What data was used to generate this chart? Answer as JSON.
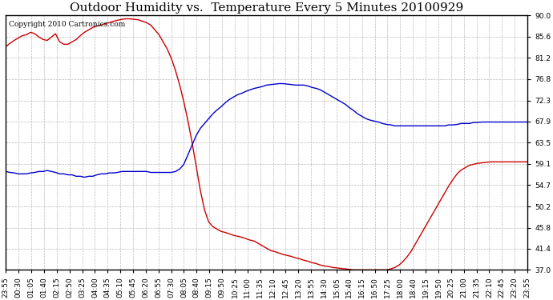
{
  "title": "Outdoor Humidity vs.  Temperature Every 5 Minutes 20100929",
  "copyright": "Copyright 2010 Cartronics.com",
  "y_ticks": [
    37.0,
    41.4,
    45.8,
    50.2,
    54.7,
    59.1,
    63.5,
    67.9,
    72.3,
    76.8,
    81.2,
    85.6,
    90.0
  ],
  "ylim": [
    37.0,
    90.0
  ],
  "x_labels": [
    "23:55",
    "00:30",
    "01:05",
    "01:40",
    "02:15",
    "02:50",
    "03:25",
    "04:00",
    "04:35",
    "05:10",
    "05:45",
    "06:20",
    "06:55",
    "07:30",
    "08:05",
    "08:40",
    "09:15",
    "09:50",
    "10:25",
    "11:00",
    "11:35",
    "12:10",
    "12:45",
    "13:20",
    "13:55",
    "14:30",
    "15:05",
    "15:40",
    "16:15",
    "16:50",
    "17:25",
    "18:00",
    "18:40",
    "19:15",
    "19:50",
    "20:25",
    "21:00",
    "21:35",
    "22:10",
    "22:45",
    "23:20",
    "23:55"
  ],
  "red_line_color": "#cc0000",
  "blue_line_color": "#0000cc",
  "background_color": "#ffffff",
  "plot_bg_color": "#ffffff",
  "grid_color": "#bbbbbb",
  "title_fontsize": 11,
  "copyright_fontsize": 6.5,
  "tick_fontsize": 6.5,
  "line_width": 1.0,
  "red_data": [
    83.5,
    84.2,
    84.8,
    85.3,
    85.8,
    86.0,
    86.5,
    86.2,
    85.5,
    85.0,
    84.8,
    85.5,
    86.2,
    84.5,
    84.0,
    84.0,
    84.5,
    85.0,
    85.8,
    86.5,
    87.0,
    87.5,
    87.8,
    88.0,
    88.3,
    88.5,
    88.8,
    89.0,
    89.2,
    89.3,
    89.3,
    89.2,
    89.1,
    88.8,
    88.5,
    88.0,
    87.0,
    86.0,
    84.5,
    83.0,
    81.0,
    78.5,
    75.5,
    72.0,
    68.0,
    63.5,
    58.5,
    53.5,
    49.5,
    47.0,
    46.0,
    45.5,
    45.0,
    44.8,
    44.5,
    44.2,
    44.0,
    43.8,
    43.5,
    43.2,
    43.0,
    42.5,
    42.0,
    41.5,
    41.0,
    40.8,
    40.5,
    40.2,
    40.0,
    39.8,
    39.5,
    39.3,
    39.0,
    38.8,
    38.5,
    38.3,
    38.0,
    37.8,
    37.7,
    37.5,
    37.4,
    37.3,
    37.2,
    37.1,
    37.0,
    37.0,
    37.0,
    37.0,
    37.0,
    37.0,
    37.0,
    37.0,
    37.0,
    37.2,
    37.5,
    38.0,
    38.8,
    39.8,
    41.0,
    42.5,
    44.0,
    45.5,
    47.0,
    48.5,
    50.0,
    51.5,
    53.0,
    54.5,
    55.8,
    57.0,
    57.8,
    58.3,
    58.8,
    59.0,
    59.2,
    59.3,
    59.4,
    59.5,
    59.5,
    59.5,
    59.5,
    59.5,
    59.5,
    59.5,
    59.5,
    59.5,
    59.5
  ],
  "blue_data": [
    57.5,
    57.3,
    57.2,
    57.0,
    57.0,
    57.0,
    57.2,
    57.3,
    57.5,
    57.5,
    57.7,
    57.5,
    57.3,
    57.0,
    57.0,
    56.8,
    56.8,
    56.5,
    56.5,
    56.3,
    56.5,
    56.5,
    56.8,
    57.0,
    57.0,
    57.2,
    57.2,
    57.3,
    57.5,
    57.5,
    57.5,
    57.5,
    57.5,
    57.5,
    57.5,
    57.3,
    57.3,
    57.3,
    57.3,
    57.3,
    57.3,
    57.5,
    58.0,
    59.0,
    61.0,
    63.0,
    65.0,
    66.5,
    67.5,
    68.5,
    69.5,
    70.3,
    71.0,
    71.8,
    72.5,
    73.0,
    73.5,
    73.8,
    74.2,
    74.5,
    74.8,
    75.0,
    75.2,
    75.5,
    75.6,
    75.7,
    75.8,
    75.8,
    75.7,
    75.6,
    75.5,
    75.5,
    75.5,
    75.3,
    75.0,
    74.8,
    74.5,
    74.0,
    73.5,
    73.0,
    72.5,
    72.0,
    71.5,
    70.8,
    70.2,
    69.5,
    69.0,
    68.5,
    68.2,
    68.0,
    67.8,
    67.5,
    67.3,
    67.2,
    67.0,
    67.0,
    67.0,
    67.0,
    67.0,
    67.0,
    67.0,
    67.0,
    67.0,
    67.0,
    67.0,
    67.0,
    67.0,
    67.2,
    67.2,
    67.3,
    67.5,
    67.5,
    67.5,
    67.7,
    67.7,
    67.8,
    67.8,
    67.8,
    67.8,
    67.8,
    67.8,
    67.8,
    67.8,
    67.8,
    67.8,
    67.8,
    67.8
  ]
}
